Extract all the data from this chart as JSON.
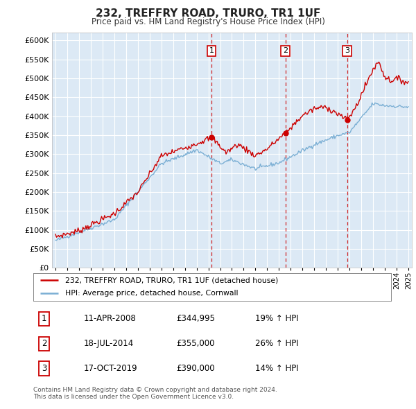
{
  "title": "232, TREFFRY ROAD, TRURO, TR1 1UF",
  "subtitle": "Price paid vs. HM Land Registry's House Price Index (HPI)",
  "ylim": [
    0,
    620000
  ],
  "yticks": [
    0,
    50000,
    100000,
    150000,
    200000,
    250000,
    300000,
    350000,
    400000,
    450000,
    500000,
    550000,
    600000
  ],
  "bg_color": "#dce9f5",
  "grid_color": "#ffffff",
  "sale_dates": [
    2008.27,
    2014.54,
    2019.79
  ],
  "sale_prices": [
    344995,
    355000,
    390000
  ],
  "sale_labels": [
    "1",
    "2",
    "3"
  ],
  "legend_line1": "232, TREFFRY ROAD, TRURO, TR1 1UF (detached house)",
  "legend_line2": "HPI: Average price, detached house, Cornwall",
  "table_data": [
    [
      "1",
      "11-APR-2008",
      "£344,995",
      "19% ↑ HPI"
    ],
    [
      "2",
      "18-JUL-2014",
      "£355,000",
      "26% ↑ HPI"
    ],
    [
      "3",
      "17-OCT-2019",
      "£390,000",
      "14% ↑ HPI"
    ]
  ],
  "footer": "Contains HM Land Registry data © Crown copyright and database right 2024.\nThis data is licensed under the Open Government Licence v3.0.",
  "red_color": "#cc0000",
  "blue_color": "#7bafd4"
}
